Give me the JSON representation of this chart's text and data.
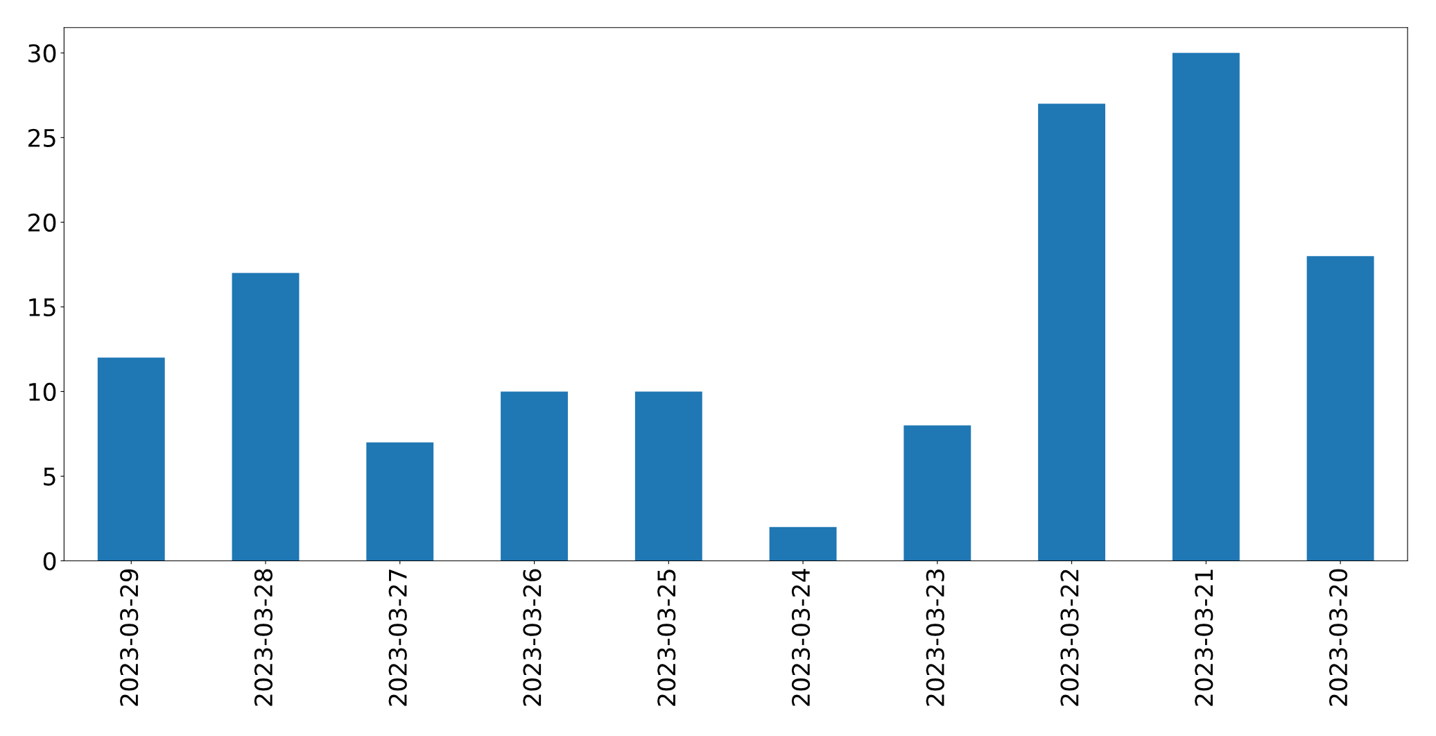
{
  "chart_data": {
    "type": "bar",
    "categories": [
      "2023-03-29",
      "2023-03-28",
      "2023-03-27",
      "2023-03-26",
      "2023-03-25",
      "2023-03-24",
      "2023-03-23",
      "2023-03-22",
      "2023-03-21",
      "2023-03-20"
    ],
    "values": [
      12,
      17,
      7,
      10,
      10,
      2,
      8,
      27,
      30,
      18
    ],
    "color": "#1f77b4",
    "ylim": [
      0,
      31.5
    ],
    "yticks": [
      0,
      5,
      10,
      15,
      20,
      25,
      30
    ],
    "grid": false,
    "legend": false
  }
}
